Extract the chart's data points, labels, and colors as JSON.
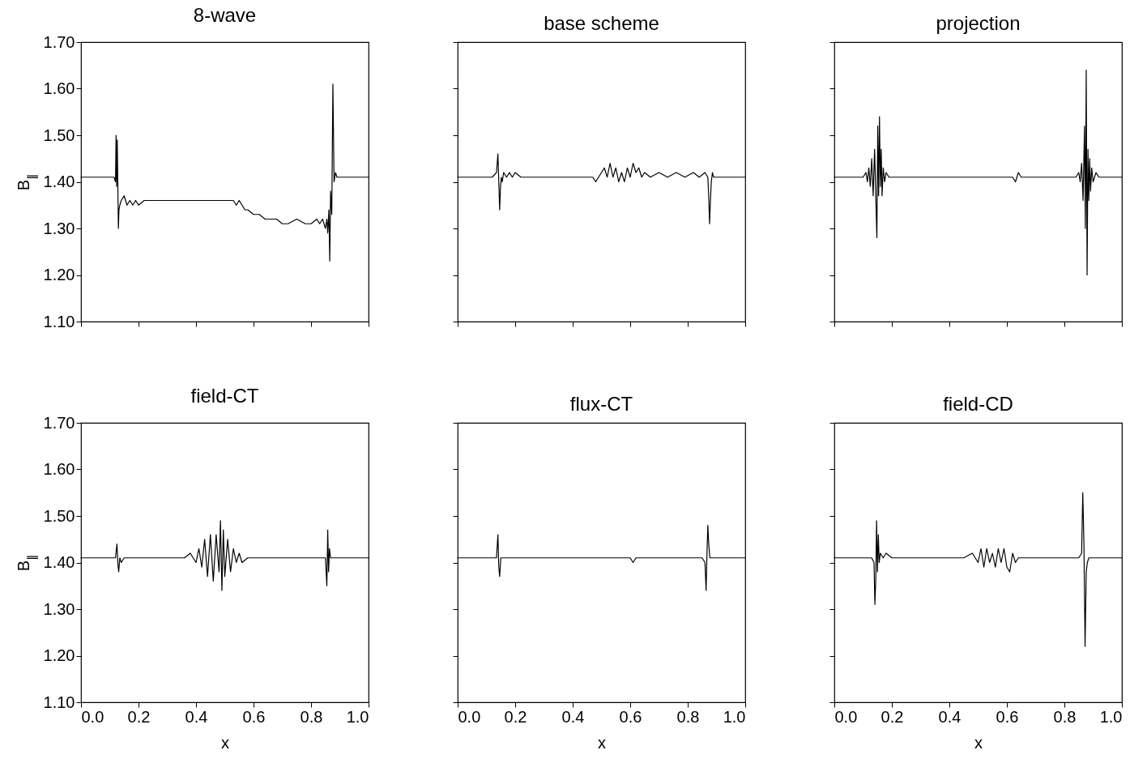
{
  "chart_data": [
    {
      "type": "line",
      "title": "8-wave",
      "ylabel": "B$_{∥}$",
      "tick_labels": "y",
      "xlim": [
        0,
        1
      ],
      "ylim": [
        1.1,
        1.7
      ],
      "xticks": [
        {
          "value": 0,
          "label": null
        },
        {
          "value": 0.2,
          "label": null
        },
        {
          "value": 0.4,
          "label": null
        },
        {
          "value": 0.6,
          "label": null
        },
        {
          "value": 0.8,
          "label": null
        },
        {
          "value": 1,
          "label": null
        }
      ],
      "yticks": [
        {
          "value": 1.1,
          "label": "1.10"
        },
        {
          "value": 1.2,
          "label": "1.20"
        },
        {
          "value": 1.3,
          "label": "1.30"
        },
        {
          "value": 1.4,
          "label": "1.40"
        },
        {
          "value": 1.5,
          "label": "1.50"
        },
        {
          "value": 1.6,
          "label": "1.60"
        },
        {
          "value": 1.7,
          "label": "1.70"
        }
      ],
      "x": [
        0,
        0.1,
        0.115,
        0.12,
        0.122,
        0.124,
        0.126,
        0.128,
        0.13,
        0.132,
        0.135,
        0.14,
        0.15,
        0.16,
        0.17,
        0.18,
        0.19,
        0.2,
        0.22,
        0.25,
        0.3,
        0.4,
        0.5,
        0.53,
        0.54,
        0.55,
        0.56,
        0.57,
        0.58,
        0.6,
        0.62,
        0.64,
        0.66,
        0.68,
        0.7,
        0.72,
        0.75,
        0.78,
        0.8,
        0.82,
        0.83,
        0.84,
        0.85,
        0.855,
        0.858,
        0.862,
        0.865,
        0.868,
        0.872,
        0.876,
        0.88,
        0.885,
        0.89,
        0.9,
        1.0
      ],
      "series": [
        {
          "color": "#000000",
          "values": [
            1.41,
            1.41,
            1.41,
            1.4,
            1.5,
            1.39,
            1.49,
            1.4,
            1.3,
            1.34,
            1.35,
            1.36,
            1.37,
            1.35,
            1.36,
            1.35,
            1.36,
            1.35,
            1.36,
            1.36,
            1.36,
            1.36,
            1.36,
            1.36,
            1.35,
            1.36,
            1.35,
            1.34,
            1.34,
            1.33,
            1.33,
            1.32,
            1.32,
            1.32,
            1.31,
            1.31,
            1.32,
            1.31,
            1.31,
            1.32,
            1.31,
            1.32,
            1.3,
            1.32,
            1.29,
            1.34,
            1.23,
            1.38,
            1.33,
            1.61,
            1.4,
            1.42,
            1.41,
            1.41,
            1.41
          ]
        }
      ]
    },
    {
      "type": "line",
      "title": "base scheme",
      "tick_labels": false,
      "xlim": [
        0,
        1
      ],
      "ylim": [
        1.1,
        1.7
      ],
      "xticks": [
        {
          "value": 0,
          "label": null
        },
        {
          "value": 0.2,
          "label": null
        },
        {
          "value": 0.4,
          "label": null
        },
        {
          "value": 0.6,
          "label": null
        },
        {
          "value": 0.8,
          "label": null
        },
        {
          "value": 1,
          "label": null
        }
      ],
      "yticks": [
        {
          "value": 1.1,
          "label": null
        },
        {
          "value": 1.2,
          "label": null
        },
        {
          "value": 1.3,
          "label": null
        },
        {
          "value": 1.4,
          "label": null
        },
        {
          "value": 1.5,
          "label": null
        },
        {
          "value": 1.6,
          "label": null
        },
        {
          "value": 1.7,
          "label": null
        }
      ],
      "x": [
        0,
        0.12,
        0.135,
        0.14,
        0.143,
        0.146,
        0.149,
        0.152,
        0.155,
        0.16,
        0.17,
        0.18,
        0.19,
        0.2,
        0.22,
        0.25,
        0.3,
        0.4,
        0.45,
        0.47,
        0.48,
        0.5,
        0.51,
        0.52,
        0.53,
        0.54,
        0.55,
        0.56,
        0.57,
        0.58,
        0.59,
        0.6,
        0.61,
        0.62,
        0.63,
        0.64,
        0.65,
        0.67,
        0.7,
        0.73,
        0.76,
        0.79,
        0.82,
        0.84,
        0.86,
        0.87,
        0.873,
        0.876,
        0.879,
        0.882,
        0.886,
        0.89,
        0.9,
        1.0
      ],
      "series": [
        {
          "color": "#000000",
          "values": [
            1.41,
            1.41,
            1.42,
            1.46,
            1.4,
            1.34,
            1.39,
            1.41,
            1.4,
            1.42,
            1.41,
            1.42,
            1.41,
            1.42,
            1.41,
            1.41,
            1.41,
            1.41,
            1.41,
            1.41,
            1.4,
            1.42,
            1.43,
            1.41,
            1.44,
            1.41,
            1.43,
            1.4,
            1.42,
            1.4,
            1.43,
            1.41,
            1.44,
            1.42,
            1.43,
            1.41,
            1.42,
            1.41,
            1.42,
            1.41,
            1.42,
            1.41,
            1.42,
            1.41,
            1.42,
            1.41,
            1.37,
            1.31,
            1.36,
            1.4,
            1.42,
            1.41,
            1.41,
            1.41
          ]
        }
      ]
    },
    {
      "type": "line",
      "title": "projection",
      "tick_labels": false,
      "xlim": [
        0,
        1
      ],
      "ylim": [
        1.1,
        1.7
      ],
      "xticks": [
        {
          "value": 0,
          "label": null
        },
        {
          "value": 0.2,
          "label": null
        },
        {
          "value": 0.4,
          "label": null
        },
        {
          "value": 0.6,
          "label": null
        },
        {
          "value": 0.8,
          "label": null
        },
        {
          "value": 1,
          "label": null
        }
      ],
      "yticks": [
        {
          "value": 1.1,
          "label": null
        },
        {
          "value": 1.2,
          "label": null
        },
        {
          "value": 1.3,
          "label": null
        },
        {
          "value": 1.4,
          "label": null
        },
        {
          "value": 1.5,
          "label": null
        },
        {
          "value": 1.6,
          "label": null
        },
        {
          "value": 1.7,
          "label": null
        }
      ],
      "x": [
        0,
        0.1,
        0.11,
        0.115,
        0.12,
        0.125,
        0.13,
        0.135,
        0.14,
        0.145,
        0.148,
        0.151,
        0.154,
        0.157,
        0.16,
        0.163,
        0.166,
        0.17,
        0.175,
        0.18,
        0.19,
        0.2,
        0.3,
        0.4,
        0.5,
        0.6,
        0.62,
        0.63,
        0.64,
        0.65,
        0.7,
        0.8,
        0.84,
        0.85,
        0.855,
        0.86,
        0.865,
        0.87,
        0.873,
        0.876,
        0.879,
        0.882,
        0.885,
        0.888,
        0.891,
        0.895,
        0.9,
        0.91,
        0.92,
        0.93,
        1.0
      ],
      "series": [
        {
          "color": "#000000",
          "values": [
            1.41,
            1.41,
            1.42,
            1.4,
            1.43,
            1.39,
            1.45,
            1.37,
            1.47,
            1.35,
            1.28,
            1.52,
            1.37,
            1.54,
            1.39,
            1.47,
            1.37,
            1.43,
            1.4,
            1.42,
            1.41,
            1.41,
            1.41,
            1.41,
            1.41,
            1.41,
            1.41,
            1.4,
            1.42,
            1.41,
            1.41,
            1.41,
            1.41,
            1.42,
            1.4,
            1.44,
            1.36,
            1.52,
            1.3,
            1.64,
            1.2,
            1.47,
            1.36,
            1.45,
            1.38,
            1.43,
            1.4,
            1.42,
            1.41,
            1.41,
            1.41
          ]
        }
      ]
    },
    {
      "type": "line",
      "title": "field-CT",
      "xlabel": "x",
      "ylabel": "B$_{∥}$",
      "xlim": [
        0,
        1
      ],
      "ylim": [
        1.1,
        1.7
      ],
      "xticks": [
        {
          "value": 0,
          "label": "0.0"
        },
        {
          "value": 0.2,
          "label": "0.2"
        },
        {
          "value": 0.4,
          "label": "0.4"
        },
        {
          "value": 0.6,
          "label": "0.6"
        },
        {
          "value": 0.8,
          "label": "0.8"
        },
        {
          "value": 1,
          "label": "1.0"
        }
      ],
      "yticks": [
        {
          "value": 1.1,
          "label": "1.10"
        },
        {
          "value": 1.2,
          "label": "1.20"
        },
        {
          "value": 1.3,
          "label": "1.30"
        },
        {
          "value": 1.4,
          "label": "1.40"
        },
        {
          "value": 1.5,
          "label": "1.50"
        },
        {
          "value": 1.6,
          "label": "1.60"
        },
        {
          "value": 1.7,
          "label": "1.70"
        }
      ],
      "x": [
        0,
        0.12,
        0.125,
        0.128,
        0.131,
        0.135,
        0.14,
        0.15,
        0.2,
        0.3,
        0.36,
        0.38,
        0.4,
        0.41,
        0.42,
        0.43,
        0.44,
        0.45,
        0.46,
        0.47,
        0.48,
        0.485,
        0.49,
        0.495,
        0.5,
        0.51,
        0.52,
        0.53,
        0.54,
        0.55,
        0.56,
        0.58,
        0.6,
        0.7,
        0.8,
        0.85,
        0.855,
        0.858,
        0.861,
        0.864,
        0.868,
        0.875,
        0.9,
        1.0
      ],
      "series": [
        {
          "color": "#000000",
          "values": [
            1.41,
            1.41,
            1.44,
            1.4,
            1.38,
            1.41,
            1.4,
            1.41,
            1.41,
            1.41,
            1.41,
            1.42,
            1.4,
            1.43,
            1.39,
            1.45,
            1.37,
            1.46,
            1.36,
            1.46,
            1.38,
            1.49,
            1.34,
            1.47,
            1.37,
            1.45,
            1.38,
            1.43,
            1.4,
            1.42,
            1.4,
            1.41,
            1.41,
            1.41,
            1.41,
            1.41,
            1.35,
            1.47,
            1.38,
            1.43,
            1.41,
            1.41,
            1.41,
            1.41
          ]
        }
      ]
    },
    {
      "type": "line",
      "title": "flux-CT",
      "xlabel": "x",
      "tick_labels": "x",
      "xlim": [
        0,
        1
      ],
      "ylim": [
        1.1,
        1.7
      ],
      "xticks": [
        {
          "value": 0,
          "label": "0.0"
        },
        {
          "value": 0.2,
          "label": "0.2"
        },
        {
          "value": 0.4,
          "label": "0.4"
        },
        {
          "value": 0.6,
          "label": "0.6"
        },
        {
          "value": 0.8,
          "label": "0.8"
        },
        {
          "value": 1,
          "label": "1.0"
        }
      ],
      "yticks": [
        {
          "value": 1.1,
          "label": null
        },
        {
          "value": 1.2,
          "label": null
        },
        {
          "value": 1.3,
          "label": null
        },
        {
          "value": 1.4,
          "label": null
        },
        {
          "value": 1.5,
          "label": null
        },
        {
          "value": 1.6,
          "label": null
        },
        {
          "value": 1.7,
          "label": null
        }
      ],
      "x": [
        0,
        0.12,
        0.135,
        0.14,
        0.143,
        0.146,
        0.15,
        0.16,
        0.3,
        0.5,
        0.6,
        0.61,
        0.62,
        0.7,
        0.85,
        0.86,
        0.864,
        0.867,
        0.87,
        0.873,
        0.877,
        0.885,
        1.0
      ],
      "series": [
        {
          "color": "#000000",
          "values": [
            1.41,
            1.41,
            1.41,
            1.46,
            1.39,
            1.37,
            1.41,
            1.41,
            1.41,
            1.41,
            1.41,
            1.4,
            1.41,
            1.41,
            1.41,
            1.4,
            1.34,
            1.42,
            1.48,
            1.44,
            1.41,
            1.41,
            1.41
          ]
        }
      ]
    },
    {
      "type": "line",
      "title": "field-CD",
      "xlabel": "x",
      "tick_labels": "x",
      "xlim": [
        0,
        1
      ],
      "ylim": [
        1.1,
        1.7
      ],
      "xticks": [
        {
          "value": 0,
          "label": "0.0"
        },
        {
          "value": 0.2,
          "label": "0.2"
        },
        {
          "value": 0.4,
          "label": "0.4"
        },
        {
          "value": 0.6,
          "label": "0.6"
        },
        {
          "value": 0.8,
          "label": "0.8"
        },
        {
          "value": 1,
          "label": "1.0"
        }
      ],
      "yticks": [
        {
          "value": 1.1,
          "label": null
        },
        {
          "value": 1.2,
          "label": null
        },
        {
          "value": 1.3,
          "label": null
        },
        {
          "value": 1.4,
          "label": null
        },
        {
          "value": 1.5,
          "label": null
        },
        {
          "value": 1.6,
          "label": null
        },
        {
          "value": 1.7,
          "label": null
        }
      ],
      "x": [
        0,
        0.13,
        0.138,
        0.141,
        0.144,
        0.147,
        0.15,
        0.153,
        0.156,
        0.16,
        0.17,
        0.18,
        0.2,
        0.3,
        0.45,
        0.48,
        0.5,
        0.51,
        0.52,
        0.53,
        0.54,
        0.55,
        0.56,
        0.57,
        0.58,
        0.59,
        0.6,
        0.61,
        0.62,
        0.63,
        0.64,
        0.66,
        0.7,
        0.8,
        0.85,
        0.86,
        0.864,
        0.868,
        0.872,
        0.876,
        0.88,
        0.885,
        0.9,
        1.0
      ],
      "series": [
        {
          "color": "#000000",
          "values": [
            1.41,
            1.41,
            1.4,
            1.31,
            1.36,
            1.49,
            1.38,
            1.46,
            1.4,
            1.42,
            1.41,
            1.42,
            1.41,
            1.41,
            1.41,
            1.42,
            1.4,
            1.43,
            1.39,
            1.43,
            1.4,
            1.42,
            1.39,
            1.43,
            1.4,
            1.43,
            1.39,
            1.38,
            1.42,
            1.4,
            1.41,
            1.41,
            1.41,
            1.41,
            1.41,
            1.42,
            1.55,
            1.44,
            1.22,
            1.38,
            1.4,
            1.41,
            1.41,
            1.41
          ]
        }
      ]
    }
  ]
}
